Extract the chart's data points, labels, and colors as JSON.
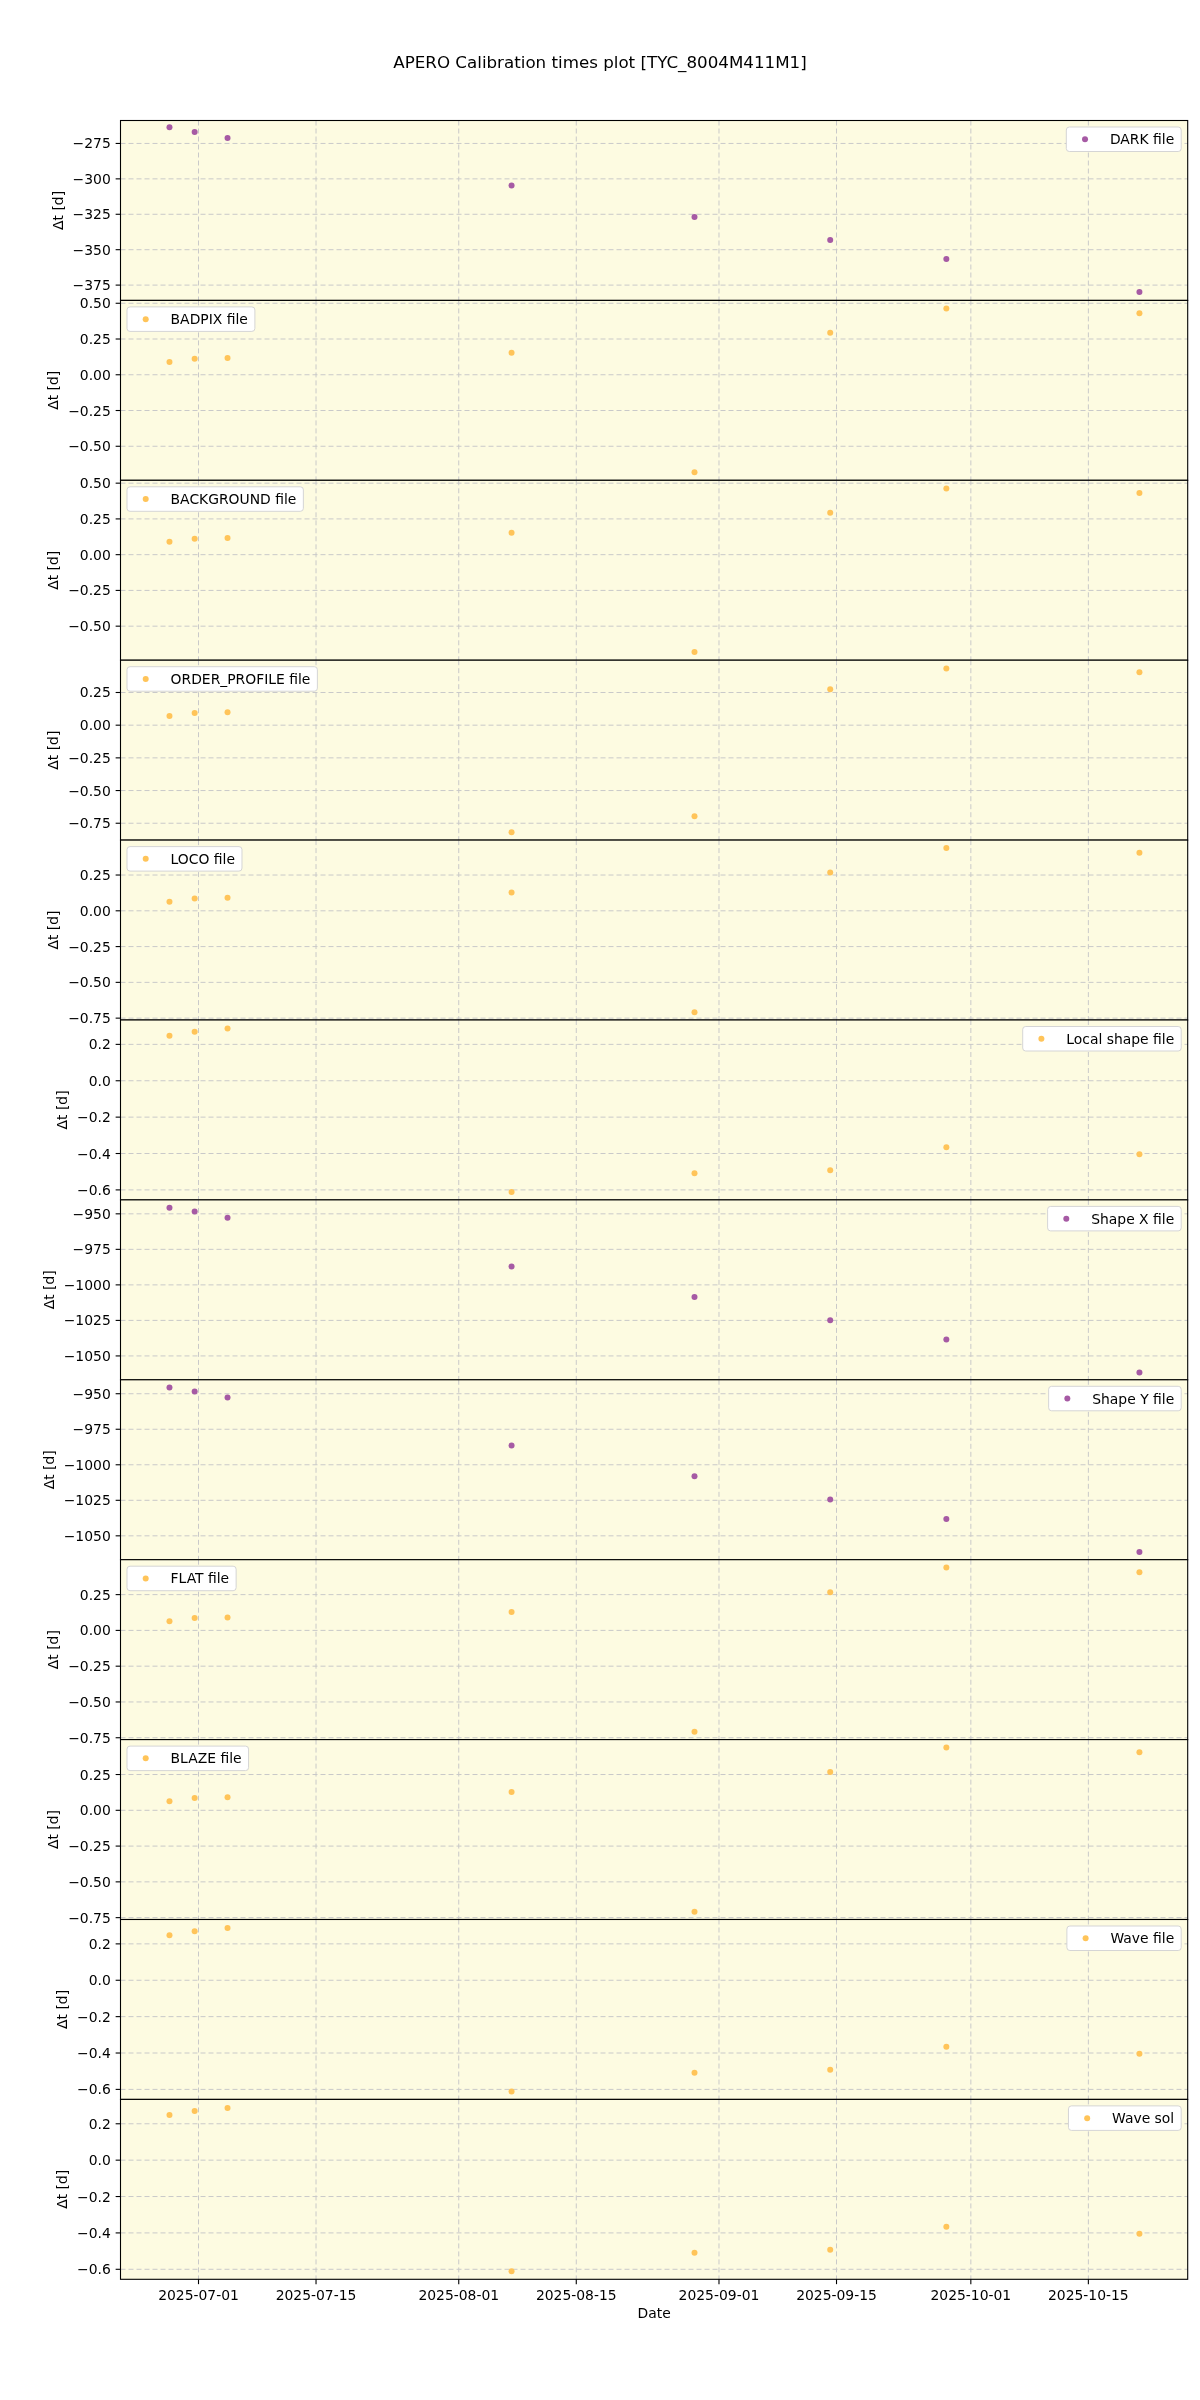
{
  "chart_data": [
    {
      "type": "scatter",
      "title": "APERO Calibration times plot [TYC_8004M411M1]",
      "x": [
        "2025-06-27T13:00",
        "2025-06-30T13:00",
        "2025-07-04T11:00",
        "2025-08-07T07:00",
        "2025-08-29T02:00",
        "2025-09-14T06:00",
        "2025-09-28T02:00",
        "2025-10-21T02:00"
      ],
      "series": [
        {
          "name": "DARK file",
          "color": "#a65aa4",
          "values": [
            -263.6,
            -266.9,
            -271.2,
            -304.7,
            -326.9,
            -343.1,
            -356.6,
            -379.9
          ]
        }
      ],
      "xlim": [
        "2025-06-21T17:00",
        "2025-10-26T20:00"
      ],
      "xticks": [
        "2025-07-01",
        "2025-07-15",
        "2025-08-01",
        "2025-08-15",
        "2025-09-01",
        "2025-09-15",
        "2025-10-01",
        "2025-10-15"
      ],
      "ylim": [
        -385.8,
        -258.8
      ],
      "yticks": [
        {
          "value": -275,
          "label": "−275"
        },
        {
          "value": -300,
          "label": "−300"
        },
        {
          "value": -325,
          "label": "−325"
        },
        {
          "value": -350,
          "label": "−350"
        },
        {
          "value": -375,
          "label": "−375"
        }
      ],
      "ylabel": "Δt [d]",
      "grid": true,
      "legend": "top right",
      "marker": "circle",
      "tick_labels": "y"
    },
    {
      "type": "scatter",
      "x": [
        "2025-06-27T13:00",
        "2025-06-30T13:00",
        "2025-07-04T11:00",
        "2025-08-07T07:00",
        "2025-08-29T02:00",
        "2025-09-14T06:00",
        "2025-09-28T02:00",
        "2025-10-21T02:00"
      ],
      "series": [
        {
          "name": "BADPIX file",
          "color": "#ffc459",
          "values": [
            0.09,
            0.112,
            0.117,
            0.154,
            -0.681,
            0.293,
            0.463,
            0.431
          ]
        }
      ],
      "xlim": [
        "2025-06-21T17:00",
        "2025-10-26T20:00"
      ],
      "xticks": [
        "2025-07-01",
        "2025-07-15",
        "2025-08-01",
        "2025-08-15",
        "2025-09-01",
        "2025-09-15",
        "2025-10-01",
        "2025-10-15"
      ],
      "ylim": [
        -0.738,
        0.52
      ],
      "yticks": [
        {
          "value": 0.5,
          "label": "0.50"
        },
        {
          "value": 0.25,
          "label": "0.25"
        },
        {
          "value": 0,
          "label": "0.00"
        },
        {
          "value": -0.25,
          "label": "−0.25"
        },
        {
          "value": -0.5,
          "label": "−0.50"
        }
      ],
      "ylabel": "Δt [d]",
      "grid": true,
      "legend": "top left",
      "marker": "circle",
      "tick_labels": "y"
    },
    {
      "type": "scatter",
      "x": [
        "2025-06-27T13:00",
        "2025-06-30T13:00",
        "2025-07-04T11:00",
        "2025-08-07T07:00",
        "2025-08-29T02:00",
        "2025-09-14T06:00",
        "2025-09-28T02:00",
        "2025-10-21T02:00"
      ],
      "series": [
        {
          "name": "BACKGROUND file",
          "color": "#ffc459",
          "values": [
            0.09,
            0.112,
            0.117,
            0.154,
            -0.681,
            0.293,
            0.463,
            0.431
          ]
        }
      ],
      "xlim": [
        "2025-06-21T17:00",
        "2025-10-26T20:00"
      ],
      "xticks": [
        "2025-07-01",
        "2025-07-15",
        "2025-08-01",
        "2025-08-15",
        "2025-09-01",
        "2025-09-15",
        "2025-10-01",
        "2025-10-15"
      ],
      "ylim": [
        -0.738,
        0.52
      ],
      "yticks": [
        {
          "value": 0.5,
          "label": "0.50"
        },
        {
          "value": 0.25,
          "label": "0.25"
        },
        {
          "value": 0,
          "label": "0.00"
        },
        {
          "value": -0.25,
          "label": "−0.25"
        },
        {
          "value": -0.5,
          "label": "−0.50"
        }
      ],
      "ylabel": "Δt [d]",
      "grid": true,
      "legend": "top left",
      "marker": "circle",
      "tick_labels": "y"
    },
    {
      "type": "scatter",
      "x": [
        "2025-06-27T13:00",
        "2025-06-30T13:00",
        "2025-07-04T11:00",
        "2025-08-07T07:00",
        "2025-08-29T02:00",
        "2025-09-14T06:00",
        "2025-09-28T02:00",
        "2025-10-21T02:00"
      ],
      "series": [
        {
          "name": "ORDER_PROFILE file",
          "color": "#ffc459",
          "values": [
            0.07,
            0.094,
            0.099,
            -0.819,
            -0.696,
            0.275,
            0.433,
            0.404
          ]
        }
      ],
      "xlim": [
        "2025-06-21T17:00",
        "2025-10-26T20:00"
      ],
      "xticks": [
        "2025-07-01",
        "2025-07-15",
        "2025-08-01",
        "2025-08-15",
        "2025-09-01",
        "2025-09-15",
        "2025-10-01",
        "2025-10-15"
      ],
      "ylim": [
        -0.879,
        0.497
      ],
      "yticks": [
        {
          "value": 0.25,
          "label": "0.25"
        },
        {
          "value": 0,
          "label": "0.00"
        },
        {
          "value": -0.25,
          "label": "−0.25"
        },
        {
          "value": -0.5,
          "label": "−0.50"
        },
        {
          "value": -0.75,
          "label": "−0.75"
        }
      ],
      "ylabel": "Δt [d]",
      "grid": true,
      "legend": "top left",
      "marker": "circle",
      "tick_labels": "y"
    },
    {
      "type": "scatter",
      "x": [
        "2025-06-27T13:00",
        "2025-06-30T13:00",
        "2025-07-04T11:00",
        "2025-08-07T07:00",
        "2025-08-29T02:00",
        "2025-09-14T06:00",
        "2025-09-28T02:00",
        "2025-10-21T02:00"
      ],
      "series": [
        {
          "name": "LOCO file",
          "color": "#ffc459",
          "values": [
            0.064,
            0.086,
            0.091,
            0.128,
            -0.709,
            0.267,
            0.439,
            0.406
          ]
        }
      ],
      "xlim": [
        "2025-06-21T17:00",
        "2025-10-26T20:00"
      ],
      "xticks": [
        "2025-07-01",
        "2025-07-15",
        "2025-08-01",
        "2025-08-15",
        "2025-09-01",
        "2025-09-15",
        "2025-10-01",
        "2025-10-15"
      ],
      "ylim": [
        -0.763,
        0.494
      ],
      "yticks": [
        {
          "value": 0.25,
          "label": "0.25"
        },
        {
          "value": 0,
          "label": "0.00"
        },
        {
          "value": -0.25,
          "label": "−0.25"
        },
        {
          "value": -0.5,
          "label": "−0.50"
        },
        {
          "value": -0.75,
          "label": "−0.75"
        }
      ],
      "ylabel": "Δt [d]",
      "grid": true,
      "legend": "top left",
      "marker": "circle",
      "tick_labels": "y"
    },
    {
      "type": "scatter",
      "x": [
        "2025-06-27T13:00",
        "2025-06-30T13:00",
        "2025-07-04T11:00",
        "2025-08-07T07:00",
        "2025-08-29T02:00",
        "2025-09-14T06:00",
        "2025-09-28T02:00",
        "2025-10-21T02:00"
      ],
      "series": [
        {
          "name": "Local shape file",
          "color": "#ffc459",
          "values": [
            0.248,
            0.27,
            0.287,
            -0.611,
            -0.509,
            -0.492,
            -0.366,
            -0.404
          ]
        }
      ],
      "xlim": [
        "2025-06-21T17:00",
        "2025-10-26T20:00"
      ],
      "xticks": [
        "2025-07-01",
        "2025-07-15",
        "2025-08-01",
        "2025-08-15",
        "2025-09-01",
        "2025-09-15",
        "2025-10-01",
        "2025-10-15"
      ],
      "ylim": [
        -0.655,
        0.334
      ],
      "yticks": [
        {
          "value": 0.2,
          "label": "0.2"
        },
        {
          "value": 0,
          "label": "0.0"
        },
        {
          "value": -0.2,
          "label": "−0.2"
        },
        {
          "value": -0.4,
          "label": "−0.4"
        },
        {
          "value": -0.6,
          "label": "−0.6"
        }
      ],
      "ylabel": "Δt [d]",
      "grid": true,
      "legend": "top right",
      "marker": "circle",
      "tick_labels": "y"
    },
    {
      "type": "scatter",
      "x": [
        "2025-06-27T13:00",
        "2025-06-30T13:00",
        "2025-07-04T11:00",
        "2025-08-07T07:00",
        "2025-08-29T02:00",
        "2025-09-14T06:00",
        "2025-09-28T02:00",
        "2025-10-21T02:00"
      ],
      "series": [
        {
          "name": "Shape X file",
          "color": "#a65aa4",
          "values": [
            -945.7,
            -948.4,
            -952.7,
            -987.0,
            -1008.6,
            -1024.9,
            -1038.4,
            -1061.6
          ]
        }
      ],
      "xlim": [
        "2025-06-21T17:00",
        "2025-10-26T20:00"
      ],
      "xticks": [
        "2025-07-01",
        "2025-07-15",
        "2025-08-01",
        "2025-08-15",
        "2025-09-01",
        "2025-09-15",
        "2025-10-01",
        "2025-10-15"
      ],
      "ylim": [
        -1066.8,
        -940.2
      ],
      "yticks": [
        {
          "value": -950,
          "label": "−950"
        },
        {
          "value": -975,
          "label": "−975"
        },
        {
          "value": -1000,
          "label": "−1000"
        },
        {
          "value": -1025,
          "label": "−1025"
        },
        {
          "value": -1050,
          "label": "−1050"
        }
      ],
      "ylabel": "Δt [d]",
      "grid": true,
      "legend": "top right",
      "marker": "circle",
      "tick_labels": "y"
    },
    {
      "type": "scatter",
      "x": [
        "2025-06-27T13:00",
        "2025-06-30T13:00",
        "2025-07-04T11:00",
        "2025-08-07T07:00",
        "2025-08-29T02:00",
        "2025-09-14T06:00",
        "2025-09-28T02:00",
        "2025-10-21T02:00"
      ],
      "series": [
        {
          "name": "Shape Y file",
          "color": "#a65aa4",
          "values": [
            -945.7,
            -948.4,
            -952.7,
            -986.5,
            -1008.1,
            -1024.5,
            -1038.1,
            -1061.4
          ]
        }
      ],
      "xlim": [
        "2025-06-21T17:00",
        "2025-10-26T20:00"
      ],
      "xticks": [
        "2025-07-01",
        "2025-07-15",
        "2025-08-01",
        "2025-08-15",
        "2025-09-01",
        "2025-09-15",
        "2025-10-01",
        "2025-10-15"
      ],
      "ylim": [
        -1066.8,
        -940.2
      ],
      "yticks": [
        {
          "value": -950,
          "label": "−950"
        },
        {
          "value": -975,
          "label": "−975"
        },
        {
          "value": -1000,
          "label": "−1000"
        },
        {
          "value": -1025,
          "label": "−1025"
        },
        {
          "value": -1050,
          "label": "−1050"
        }
      ],
      "ylabel": "Δt [d]",
      "grid": true,
      "legend": "top right",
      "marker": "circle",
      "tick_labels": "y"
    },
    {
      "type": "scatter",
      "x": [
        "2025-06-27T13:00",
        "2025-06-30T13:00",
        "2025-07-04T11:00",
        "2025-08-07T07:00",
        "2025-08-29T02:00",
        "2025-09-14T06:00",
        "2025-09-28T02:00",
        "2025-10-21T02:00"
      ],
      "series": [
        {
          "name": "FLAT file",
          "color": "#ffc459",
          "values": [
            0.064,
            0.086,
            0.091,
            0.128,
            -0.709,
            0.267,
            0.439,
            0.406
          ]
        }
      ],
      "xlim": [
        "2025-06-21T17:00",
        "2025-10-26T20:00"
      ],
      "xticks": [
        "2025-07-01",
        "2025-07-15",
        "2025-08-01",
        "2025-08-15",
        "2025-09-01",
        "2025-09-15",
        "2025-10-01",
        "2025-10-15"
      ],
      "ylim": [
        -0.763,
        0.494
      ],
      "yticks": [
        {
          "value": 0.25,
          "label": "0.25"
        },
        {
          "value": 0,
          "label": "0.00"
        },
        {
          "value": -0.25,
          "label": "−0.25"
        },
        {
          "value": -0.5,
          "label": "−0.50"
        },
        {
          "value": -0.75,
          "label": "−0.75"
        }
      ],
      "ylabel": "Δt [d]",
      "grid": true,
      "legend": "top left",
      "marker": "circle",
      "tick_labels": "y"
    },
    {
      "type": "scatter",
      "x": [
        "2025-06-27T13:00",
        "2025-06-30T13:00",
        "2025-07-04T11:00",
        "2025-08-07T07:00",
        "2025-08-29T02:00",
        "2025-09-14T06:00",
        "2025-09-28T02:00",
        "2025-10-21T02:00"
      ],
      "series": [
        {
          "name": "BLAZE file",
          "color": "#ffc459",
          "values": [
            0.064,
            0.086,
            0.091,
            0.128,
            -0.709,
            0.267,
            0.439,
            0.406
          ]
        }
      ],
      "xlim": [
        "2025-06-21T17:00",
        "2025-10-26T20:00"
      ],
      "xticks": [
        "2025-07-01",
        "2025-07-15",
        "2025-08-01",
        "2025-08-15",
        "2025-09-01",
        "2025-09-15",
        "2025-10-01",
        "2025-10-15"
      ],
      "ylim": [
        -0.763,
        0.494
      ],
      "yticks": [
        {
          "value": 0.25,
          "label": "0.25"
        },
        {
          "value": 0,
          "label": "0.00"
        },
        {
          "value": -0.25,
          "label": "−0.25"
        },
        {
          "value": -0.5,
          "label": "−0.50"
        },
        {
          "value": -0.75,
          "label": "−0.75"
        }
      ],
      "ylabel": "Δt [d]",
      "grid": true,
      "legend": "top left",
      "marker": "circle",
      "tick_labels": "y"
    },
    {
      "type": "scatter",
      "x": [
        "2025-06-27T13:00",
        "2025-06-30T13:00",
        "2025-07-04T11:00",
        "2025-08-07T07:00",
        "2025-08-29T02:00",
        "2025-09-14T06:00",
        "2025-09-28T02:00",
        "2025-10-21T02:00"
      ],
      "series": [
        {
          "name": "Wave file",
          "color": "#ffc459",
          "values": [
            0.248,
            0.27,
            0.287,
            -0.611,
            -0.509,
            -0.492,
            -0.366,
            -0.404
          ]
        }
      ],
      "xlim": [
        "2025-06-21T17:00",
        "2025-10-26T20:00"
      ],
      "xticks": [
        "2025-07-01",
        "2025-07-15",
        "2025-08-01",
        "2025-08-15",
        "2025-09-01",
        "2025-09-15",
        "2025-10-01",
        "2025-10-15"
      ],
      "ylim": [
        -0.655,
        0.334
      ],
      "yticks": [
        {
          "value": 0.2,
          "label": "0.2"
        },
        {
          "value": 0,
          "label": "0.0"
        },
        {
          "value": -0.2,
          "label": "−0.2"
        },
        {
          "value": -0.4,
          "label": "−0.4"
        },
        {
          "value": -0.6,
          "label": "−0.6"
        }
      ],
      "ylabel": "Δt [d]",
      "grid": true,
      "legend": "top right",
      "marker": "circle",
      "tick_labels": "y"
    },
    {
      "type": "scatter",
      "x": [
        "2025-06-27T13:00",
        "2025-06-30T13:00",
        "2025-07-04T11:00",
        "2025-08-07T07:00",
        "2025-08-29T02:00",
        "2025-09-14T06:00",
        "2025-09-28T02:00",
        "2025-10-21T02:00"
      ],
      "series": [
        {
          "name": "Wave sol",
          "color": "#ffc459",
          "values": [
            0.248,
            0.27,
            0.287,
            -0.611,
            -0.509,
            -0.492,
            -0.366,
            -0.404
          ]
        }
      ],
      "xlim": [
        "2025-06-21T17:00",
        "2025-10-26T20:00"
      ],
      "xticks": [
        "2025-07-01",
        "2025-07-15",
        "2025-08-01",
        "2025-08-15",
        "2025-09-01",
        "2025-09-15",
        "2025-10-01",
        "2025-10-15"
      ],
      "ylim": [
        -0.655,
        0.334
      ],
      "yticks": [
        {
          "value": 0.2,
          "label": "0.2"
        },
        {
          "value": 0,
          "label": "0.0"
        },
        {
          "value": -0.2,
          "label": "−0.2"
        },
        {
          "value": -0.4,
          "label": "−0.4"
        },
        {
          "value": -0.6,
          "label": "−0.6"
        }
      ],
      "ylabel": "Δt [d]",
      "xlabel": "Date",
      "grid": true,
      "legend": "top right",
      "marker": "circle"
    }
  ]
}
